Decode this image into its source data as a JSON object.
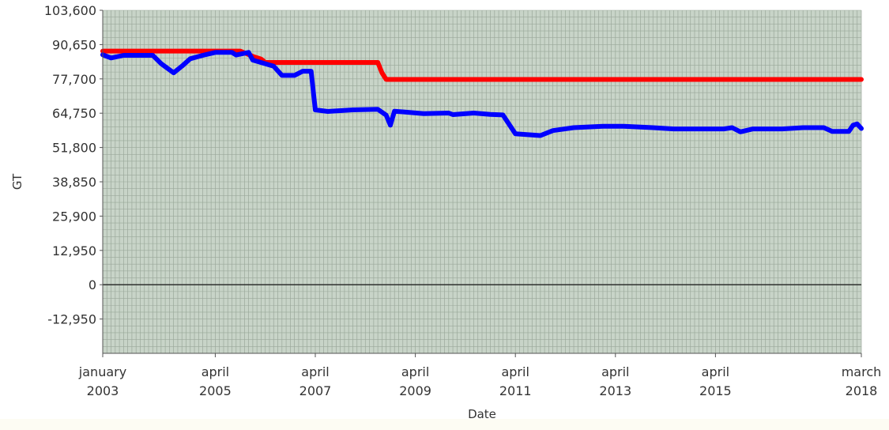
{
  "chart_data": {
    "type": "line",
    "xlabel": "Date",
    "ylabel": "GT",
    "x_range": [
      "2003-01",
      "2018-03"
    ],
    "ylim": [
      -25900,
      103600
    ],
    "y_ticks": [
      103600,
      90650,
      77700,
      64750,
      51800,
      38850,
      25900,
      12950,
      0,
      -12950
    ],
    "y_tick_labels": [
      "103,600",
      "90,650",
      "77,700",
      "64,750",
      "51,800",
      "38,850",
      "25,900",
      "12,950",
      "0",
      "-12,950"
    ],
    "x_ticks": [
      {
        "date": "2003-01",
        "line1": "january",
        "line2": "2003"
      },
      {
        "date": "2005-04",
        "line1": "april",
        "line2": "2005"
      },
      {
        "date": "2007-04",
        "line1": "april",
        "line2": "2007"
      },
      {
        "date": "2009-04",
        "line1": "april",
        "line2": "2009"
      },
      {
        "date": "2011-04",
        "line1": "april",
        "line2": "2011"
      },
      {
        "date": "2013-04",
        "line1": "april",
        "line2": "2013"
      },
      {
        "date": "2015-04",
        "line1": "april",
        "line2": "2015"
      },
      {
        "date": "2018-03",
        "line1": "march",
        "line2": "2018"
      }
    ],
    "grid": true,
    "legend": false,
    "colors": {
      "plot_background": "#c8d4c8",
      "grid": "#9aa89a",
      "zero_line": "#222222"
    },
    "series": [
      {
        "color": "#ff0000",
        "points": [
          [
            "2003-01",
            88200
          ],
          [
            "2005-10",
            88200
          ],
          [
            "2006-01",
            86200
          ],
          [
            "2006-03",
            85200
          ],
          [
            "2006-04",
            83900
          ],
          [
            "2008-07",
            83900
          ],
          [
            "2008-08",
            80000
          ],
          [
            "2008-09",
            77500
          ],
          [
            "2018-03",
            77500
          ]
        ]
      },
      {
        "color": "#0000ff",
        "points": [
          [
            "2003-01",
            86800
          ],
          [
            "2003-03",
            85600
          ],
          [
            "2003-06",
            86600
          ],
          [
            "2004-01",
            86600
          ],
          [
            "2004-03",
            83500
          ],
          [
            "2004-06",
            80000
          ],
          [
            "2004-08",
            82500
          ],
          [
            "2004-10",
            85300
          ],
          [
            "2005-01",
            86600
          ],
          [
            "2005-04",
            87700
          ],
          [
            "2005-08",
            87700
          ],
          [
            "2005-09",
            86700
          ],
          [
            "2005-12",
            87700
          ],
          [
            "2006-01",
            84800
          ],
          [
            "2006-06",
            82500
          ],
          [
            "2006-08",
            79000
          ],
          [
            "2006-11",
            79000
          ],
          [
            "2007-01",
            80600
          ],
          [
            "2007-03",
            80600
          ],
          [
            "2007-04",
            66000
          ],
          [
            "2007-07",
            65400
          ],
          [
            "2008-01",
            66000
          ],
          [
            "2008-07",
            66200
          ],
          [
            "2008-09",
            64000
          ],
          [
            "2008-10",
            60200
          ],
          [
            "2008-11",
            65500
          ],
          [
            "2009-06",
            64600
          ],
          [
            "2009-12",
            64800
          ],
          [
            "2010-01",
            64200
          ],
          [
            "2010-06",
            64800
          ],
          [
            "2010-10",
            64300
          ],
          [
            "2011-01",
            64100
          ],
          [
            "2011-04",
            57000
          ],
          [
            "2011-10",
            56300
          ],
          [
            "2012-01",
            58200
          ],
          [
            "2012-06",
            59300
          ],
          [
            "2013-01",
            59800
          ],
          [
            "2013-06",
            59800
          ],
          [
            "2014-01",
            59300
          ],
          [
            "2014-06",
            58800
          ],
          [
            "2015-06",
            58800
          ],
          [
            "2015-08",
            59300
          ],
          [
            "2015-10",
            57700
          ],
          [
            "2016-01",
            58800
          ],
          [
            "2016-08",
            58800
          ],
          [
            "2017-01",
            59300
          ],
          [
            "2017-06",
            59300
          ],
          [
            "2017-08",
            57900
          ],
          [
            "2017-12",
            57900
          ],
          [
            "2018-01",
            60200
          ],
          [
            "2018-02",
            60700
          ],
          [
            "2018-03",
            59000
          ]
        ]
      }
    ]
  }
}
